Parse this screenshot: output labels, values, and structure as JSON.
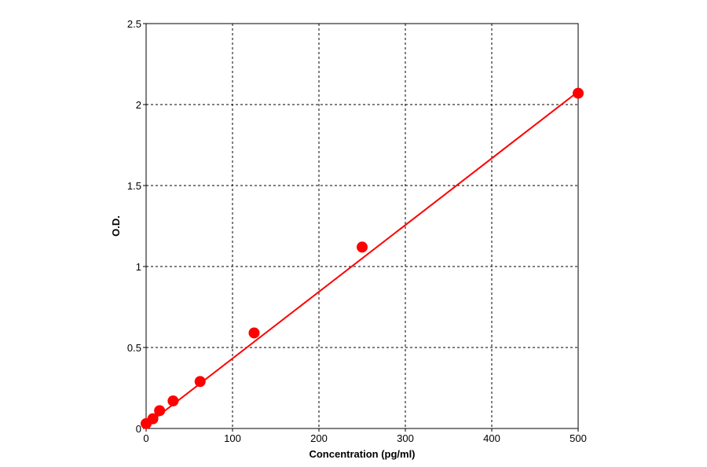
{
  "chart_data": {
    "type": "scatter",
    "title": "",
    "xlabel": "Concentration (pg/ml)",
    "ylabel": "O.D.",
    "xlim": [
      0,
      500
    ],
    "ylim": [
      0,
      2.5
    ],
    "x_ticks": [
      0,
      100,
      200,
      300,
      400,
      500
    ],
    "y_ticks": [
      0,
      0.5,
      1,
      1.5,
      2,
      2.5
    ],
    "x_tick_labels": [
      "0",
      "100",
      "200",
      "300",
      "400",
      "500"
    ],
    "y_tick_labels": [
      "0",
      "0.5",
      "1",
      "1.5",
      "2",
      "2.5"
    ],
    "grid": true,
    "legend": "none",
    "series": [
      {
        "x": [
          0,
          7.8,
          15.6,
          31.25,
          62.5,
          125,
          250,
          500
        ],
        "y": [
          0.03,
          0.06,
          0.11,
          0.17,
          0.29,
          0.59,
          1.12,
          2.07
        ],
        "color": "#ff0000"
      }
    ],
    "fit_line": {
      "x": [
        0,
        500
      ],
      "y": [
        0.02,
        2.08
      ],
      "color": "#ff0000"
    }
  }
}
